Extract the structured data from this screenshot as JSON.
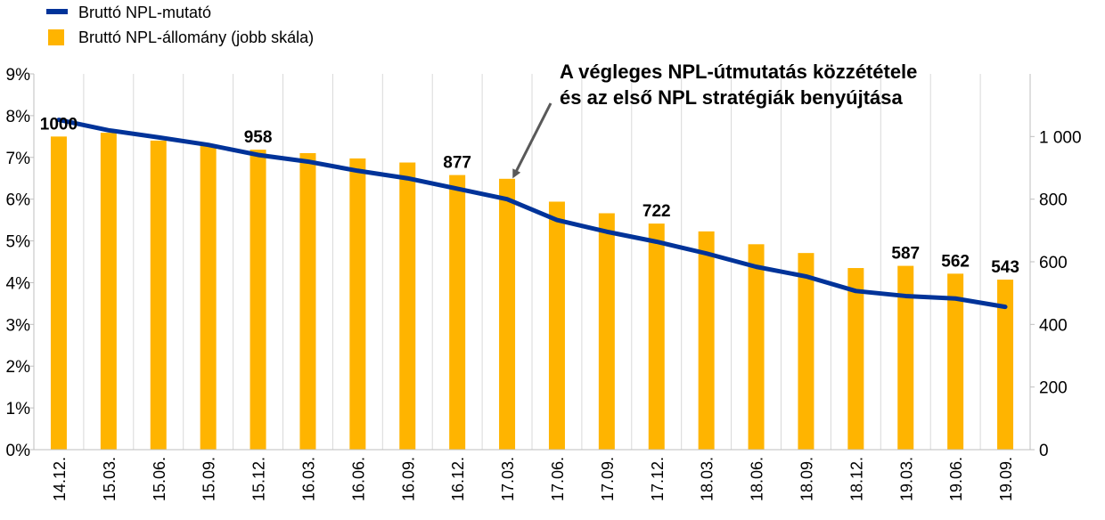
{
  "chart_data": {
    "type": "bar+line",
    "categories": [
      "14.12.",
      "15.03.",
      "15.06.",
      "15.09.",
      "15.12.",
      "16.03.",
      "16.06.",
      "16.09.",
      "16.12.",
      "17.03.",
      "17.06.",
      "17.09.",
      "17.12.",
      "18.03.",
      "18.06.",
      "18.09.",
      "18.12.",
      "19.03.",
      "19.06.",
      "19.09."
    ],
    "series": [
      {
        "name": "Bruttó NPL-mutató",
        "kind": "line",
        "axis": "left",
        "color": "#003399",
        "values": [
          7.9,
          7.65,
          7.48,
          7.3,
          7.06,
          6.9,
          6.68,
          6.5,
          6.25,
          6.0,
          5.5,
          5.22,
          4.98,
          4.7,
          4.38,
          4.15,
          3.8,
          3.68,
          3.62,
          3.42
        ]
      },
      {
        "name": "Bruttó NPL-állomány (jobb skála)",
        "kind": "bar",
        "axis": "right",
        "color": "#FFB400",
        "values": [
          1000,
          1012,
          987,
          973,
          958,
          947,
          930,
          917,
          877,
          865,
          792,
          755,
          722,
          697,
          656,
          628,
          580,
          587,
          562,
          543
        ]
      }
    ],
    "data_labels": [
      {
        "index": 0,
        "text": "1000"
      },
      {
        "index": 4,
        "text": "958"
      },
      {
        "index": 8,
        "text": "877"
      },
      {
        "index": 12,
        "text": "722"
      },
      {
        "index": 17,
        "text": "587"
      },
      {
        "index": 18,
        "text": "562"
      },
      {
        "index": 19,
        "text": "543"
      }
    ],
    "left_axis": {
      "ylim": [
        0,
        9
      ],
      "ticks": [
        0,
        1,
        2,
        3,
        4,
        5,
        6,
        7,
        8,
        9
      ],
      "tick_labels": [
        "0%",
        "1%",
        "2%",
        "3%",
        "4%",
        "5%",
        "6%",
        "7%",
        "8%",
        "9%"
      ]
    },
    "right_axis": {
      "ylim": [
        0,
        1200
      ],
      "ticks": [
        0,
        200,
        400,
        600,
        800,
        1000
      ],
      "tick_labels": [
        "0",
        "200",
        "400",
        "600",
        "800",
        "1 000"
      ]
    },
    "annotation": {
      "lines": [
        "A végleges NPL-útmutatás közzététele",
        "és az első NPL stratégiák benyújtása"
      ],
      "points_to_index": 9
    },
    "grid": "vertical",
    "legend_position": "top-left"
  }
}
